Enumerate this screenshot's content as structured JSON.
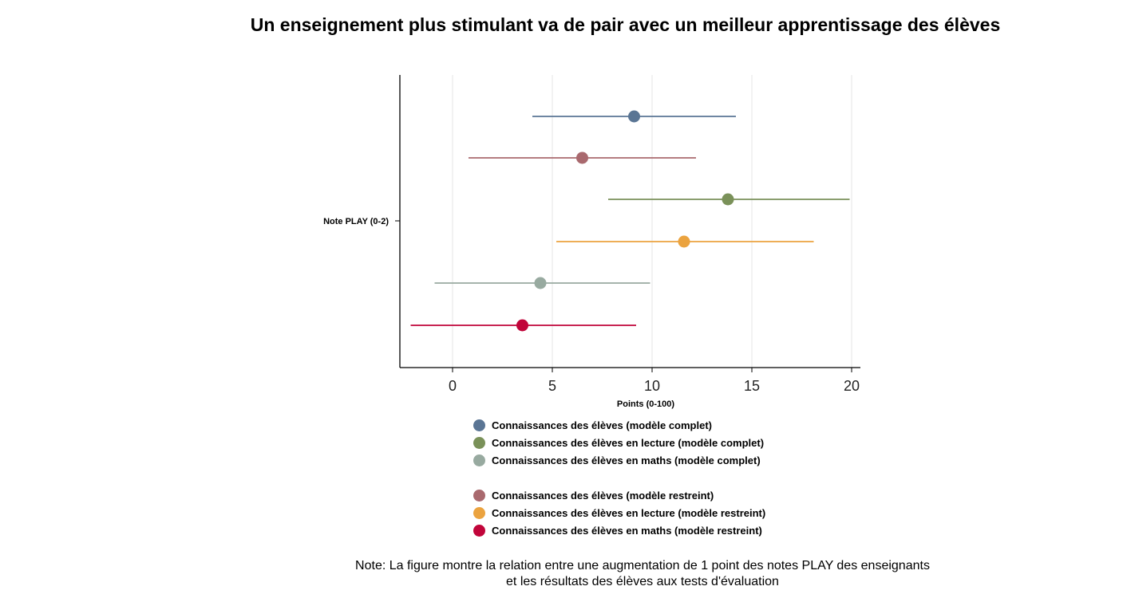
{
  "chart_data": {
    "type": "scatter",
    "title": "Un enseignement plus stimulant va de pair avec un meilleur apprentissage des élèves",
    "xlabel": "Points (0-100)",
    "ylabel": "",
    "y_category": "Note PLAY (0-2)",
    "xlim": [
      -2.6,
      20.4
    ],
    "xticks": [
      0,
      5,
      10,
      15,
      20
    ],
    "grid": true,
    "series": [
      {
        "name": "Connaissances des élèves (modèle complet)",
        "estimate": 9.1,
        "ci_low": 4.0,
        "ci_high": 14.2,
        "color": "#5a7594"
      },
      {
        "name": "Connaissances des élèves (modèle restreint)",
        "estimate": 6.5,
        "ci_low": 0.8,
        "ci_high": 12.2,
        "color": "#a9696e"
      },
      {
        "name": "Connaissances des élèves en lecture (modèle complet)",
        "estimate": 13.8,
        "ci_low": 7.8,
        "ci_high": 19.9,
        "color": "#7a9159"
      },
      {
        "name": "Connaissances des élèves en lecture (modèle restreint)",
        "estimate": 11.6,
        "ci_low": 5.2,
        "ci_high": 18.1,
        "color": "#eba33f"
      },
      {
        "name": "Connaissances des élèves en maths (modèle complet)",
        "estimate": 4.4,
        "ci_low": -0.9,
        "ci_high": 9.9,
        "color": "#98aaa0"
      },
      {
        "name": "Connaissances des élèves en maths (modèle restreint)",
        "estimate": 3.5,
        "ci_low": -2.1,
        "ci_high": 9.2,
        "color": "#c1053a"
      }
    ]
  },
  "legend": {
    "groups": [
      [
        {
          "label": "Connaissances des élèves (modèle complet)",
          "color": "#5a7594"
        },
        {
          "label": "Connaissances des élèves en lecture (modèle complet)",
          "color": "#7a9159"
        },
        {
          "label": "Connaissances des élèves en maths (modèle complet)",
          "color": "#98aaa0"
        }
      ],
      [
        {
          "label": "Connaissances des élèves (modèle restreint)",
          "color": "#a9696e"
        },
        {
          "label": "Connaissances des élèves en lecture (modèle restreint)",
          "color": "#eba33f"
        },
        {
          "label": "Connaissances des élèves en maths (modèle restreint)",
          "color": "#c1053a"
        }
      ]
    ]
  },
  "note": {
    "line1": "Note: La figure montre la relation entre une augmentation de 1 point des notes PLAY des enseignants",
    "line2": "et les résultats des élèves aux tests d'évaluation"
  }
}
